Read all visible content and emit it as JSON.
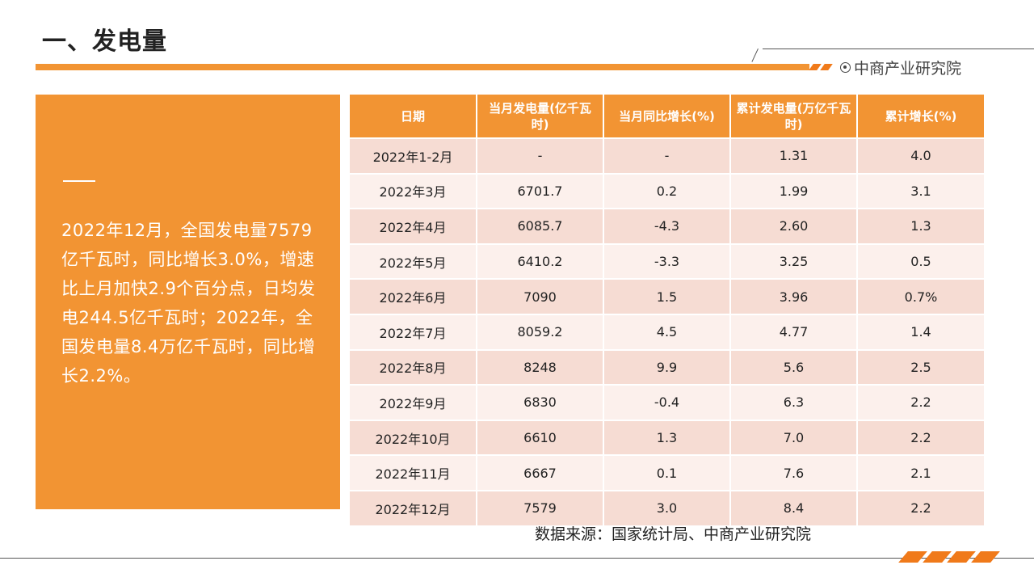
{
  "title": "一、发电量",
  "brand": "中商产业研究院",
  "summary": "2022年12月，全国发电量7579亿千瓦时，同比增长3.0%，增速比上月加快2.9个百分点，日均发电244.5亿千瓦时；2022年，全国发电量8.4万亿千瓦时，同比增长2.2%。",
  "table": {
    "headers": [
      "日期",
      "当月发电量(亿千瓦时)",
      "当月同比增长(%)",
      "累计发电量(万亿千瓦时)",
      "累计增长(%)"
    ],
    "rows": [
      [
        "2022年1-2月",
        "-",
        "-",
        "1.31",
        "4.0"
      ],
      [
        "2022年3月",
        "6701.7",
        "0.2",
        "1.99",
        "3.1"
      ],
      [
        "2022年4月",
        "6085.7",
        "-4.3",
        "2.60",
        "1.3"
      ],
      [
        "2022年5月",
        "6410.2",
        "-3.3",
        "3.25",
        "0.5"
      ],
      [
        "2022年6月",
        "7090",
        "1.5",
        "3.96",
        "0.7%"
      ],
      [
        "2022年7月",
        "8059.2",
        "4.5",
        "4.77",
        "1.4"
      ],
      [
        "2022年8月",
        "8248",
        "9.9",
        "5.6",
        "2.5"
      ],
      [
        "2022年9月",
        "6830",
        "-0.4",
        "6.3",
        "2.2"
      ],
      [
        "2022年10月",
        "6610",
        "1.3",
        "7.0",
        "2.2"
      ],
      [
        "2022年11月",
        "6667",
        "0.1",
        "7.6",
        "2.1"
      ],
      [
        "2022年12月",
        "7579",
        "3.0",
        "8.4",
        "2.2"
      ]
    ]
  },
  "source": "数据来源：国家统计局、中商产业研究院",
  "colors": {
    "accent": "#f29433",
    "row_odd": "#f6dcd3",
    "row_even": "#fcf0ec"
  },
  "icons": {
    "brand_logo": "circle-dot-icon"
  }
}
